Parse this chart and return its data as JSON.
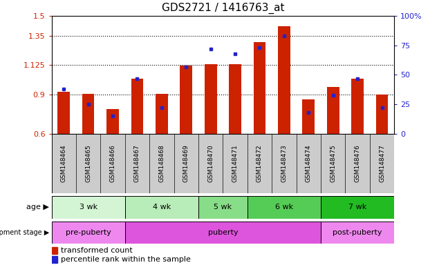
{
  "title": "GDS2721 / 1416763_at",
  "samples": [
    "GSM148464",
    "GSM148465",
    "GSM148466",
    "GSM148467",
    "GSM148468",
    "GSM148469",
    "GSM148470",
    "GSM148471",
    "GSM148472",
    "GSM148473",
    "GSM148474",
    "GSM148475",
    "GSM148476",
    "GSM148477"
  ],
  "transformed_count": [
    0.92,
    0.905,
    0.79,
    1.02,
    0.905,
    1.12,
    1.13,
    1.13,
    1.3,
    1.42,
    0.865,
    0.96,
    1.02,
    0.9
  ],
  "percentile_rank": [
    38,
    25,
    15,
    47,
    22,
    57,
    72,
    68,
    73,
    83,
    18,
    33,
    47,
    22
  ],
  "ylim_left": [
    0.6,
    1.5
  ],
  "ylim_right": [
    0,
    100
  ],
  "yticks_left": [
    0.6,
    0.9,
    1.125,
    1.35,
    1.5
  ],
  "ytick_labels_left": [
    "0.6",
    "0.9",
    "1.125",
    "1.35",
    "1.5"
  ],
  "yticks_right": [
    0,
    25,
    50,
    75,
    100
  ],
  "ytick_labels_right": [
    "0",
    "25",
    "50",
    "75",
    "100%"
  ],
  "hlines": [
    0.9,
    1.125,
    1.35
  ],
  "bar_color": "#cc2200",
  "dot_color": "#2222cc",
  "age_groups": [
    {
      "label": "3 wk",
      "start": 0,
      "end": 3,
      "color": "#d4f5d4"
    },
    {
      "label": "4 wk",
      "start": 3,
      "end": 6,
      "color": "#b8ecb8"
    },
    {
      "label": "5 wk",
      "start": 6,
      "end": 8,
      "color": "#88dd88"
    },
    {
      "label": "6 wk",
      "start": 8,
      "end": 11,
      "color": "#55cc55"
    },
    {
      "label": "7 wk",
      "start": 11,
      "end": 14,
      "color": "#22bb22"
    }
  ],
  "dev_groups": [
    {
      "label": "pre-puberty",
      "start": 0,
      "end": 3,
      "color": "#ee88ee"
    },
    {
      "label": "puberty",
      "start": 3,
      "end": 11,
      "color": "#dd55dd"
    },
    {
      "label": "post-puberty",
      "start": 11,
      "end": 14,
      "color": "#ee88ee"
    }
  ],
  "legend_bar_label": "transformed count",
  "legend_dot_label": "percentile rank within the sample",
  "bar_color_red": "#cc2200",
  "dot_color_blue": "#2222cc",
  "left_label_color": "#cc2200",
  "right_label_color": "#2222cc",
  "sample_box_color": "#cccccc",
  "bar_width": 0.5
}
